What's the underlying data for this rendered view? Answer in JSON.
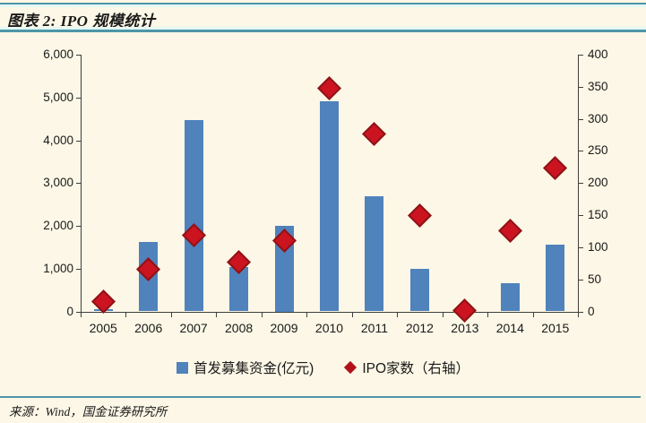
{
  "header": {
    "title": "图表 2: IPO 规模统计"
  },
  "footer": {
    "source": "来源：Wind，国金证券研究所"
  },
  "colors": {
    "background": "#FCF7E6",
    "bar_blue": "#5082BC",
    "diamond_red": "#CB1420",
    "diamond_border": "#8E1216",
    "teal_rule": "#4E96A8",
    "axis": "#3F3F3F"
  },
  "chart_data": {
    "type": "bar",
    "title": "IPO 规模统计",
    "categories": [
      "2005",
      "2006",
      "2007",
      "2008",
      "2009",
      "2010",
      "2011",
      "2012",
      "2013",
      "2014",
      "2015"
    ],
    "series": [
      {
        "name": "首发募集资金(亿元)",
        "type": "bar",
        "axis": "left",
        "values": [
          57,
          1630,
          4470,
          1040,
          2000,
          4910,
          2700,
          990,
          0,
          650,
          1560
        ]
      },
      {
        "name": "IPO家数（右轴）",
        "type": "scatter",
        "marker": "diamond",
        "axis": "right",
        "values": [
          15,
          66,
          118,
          77,
          110,
          347,
          277,
          150,
          2,
          125,
          223
        ]
      }
    ],
    "left_axis": {
      "min": 0,
      "max": 6000,
      "step": 1000,
      "tick_labels": [
        "0",
        "1,000",
        "2,000",
        "3,000",
        "4,000",
        "5,000",
        "6,000"
      ]
    },
    "right_axis": {
      "min": 0,
      "max": 400,
      "step": 50,
      "tick_labels": [
        "0",
        "50",
        "100",
        "150",
        "200",
        "250",
        "300",
        "350",
        "400"
      ]
    },
    "legend_position": "bottom",
    "grid": false
  }
}
